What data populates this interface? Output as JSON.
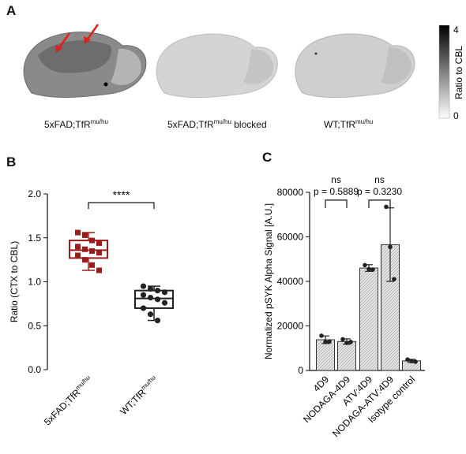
{
  "panels": {
    "a": "A",
    "b": "B",
    "c": "C"
  },
  "panel_a": {
    "captions": [
      {
        "main": "5xFAD;TfR",
        "sup": "mu/hu",
        "suffix": ""
      },
      {
        "main": "5xFAD;TfR",
        "sup": "mu/hu",
        "suffix": " blocked"
      },
      {
        "main": "WT;TfR",
        "sup": "mu/hu",
        "suffix": ""
      }
    ],
    "colorbar": {
      "label": "Ratio to CBL",
      "max": "4",
      "min": "0",
      "from": "#000000",
      "to": "#ffffff"
    },
    "arrow_color": "#e0201b",
    "brain_tones": [
      "#8a8a8a",
      "#d4d4d4",
      "#cfcfcf"
    ]
  },
  "chart_data": [
    {
      "type": "boxplot",
      "panel": "B",
      "ylabel": "Ratio (CTX to CBL)",
      "ylim": [
        0.0,
        2.0
      ],
      "yticks": [
        "0.0",
        "0.5",
        "1.0",
        "1.5",
        "2.0"
      ],
      "categories": [
        "5xFAD;TfR^mu/hu",
        "WT;TfR^mu/hu"
      ],
      "series": [
        {
          "color": "#9c1c1c",
          "box": {
            "min": 1.13,
            "q1": 1.27,
            "median": 1.36,
            "q3": 1.47,
            "max": 1.56
          },
          "points": [
            1.56,
            1.53,
            1.47,
            1.44,
            1.4,
            1.37,
            1.35,
            1.33,
            1.3,
            1.25,
            1.19,
            1.13
          ]
        },
        {
          "color": "#222222",
          "box": {
            "min": 0.56,
            "q1": 0.7,
            "median": 0.81,
            "q3": 0.9,
            "max": 0.95
          },
          "points": [
            0.95,
            0.92,
            0.9,
            0.88,
            0.85,
            0.82,
            0.8,
            0.76,
            0.7,
            0.63,
            0.56
          ]
        }
      ],
      "significance": {
        "label": "****",
        "between": [
          0,
          1
        ]
      }
    },
    {
      "type": "bar",
      "panel": "C",
      "ylabel": "Normalized pSYK Alpha Signal [A.U.]",
      "ylim": [
        0,
        80000
      ],
      "yticks": [
        "0",
        "20000",
        "40000",
        "60000",
        "80000"
      ],
      "categories": [
        "4D9",
        "NODAGA-4D9",
        "ATV:4D9",
        "NODAGA-ATV:4D9",
        "Isotype control"
      ],
      "values": [
        13800,
        13000,
        46000,
        56500,
        4300
      ],
      "errors": [
        1700,
        1200,
        1500,
        16500,
        700
      ],
      "points": [
        [
          15600,
          12800,
          12900
        ],
        [
          14000,
          12400,
          12800
        ],
        [
          47300,
          45500,
          45300
        ],
        [
          73500,
          55500,
          41000
        ],
        [
          4900,
          4200,
          3900
        ]
      ],
      "bar_fill": "#e4e4e4",
      "comparisons": [
        {
          "ns": "ns",
          "p": "p = 0.5889",
          "between": [
            0,
            1
          ]
        },
        {
          "ns": "ns",
          "p": "p = 0.3230",
          "between": [
            2,
            3
          ]
        }
      ]
    }
  ]
}
